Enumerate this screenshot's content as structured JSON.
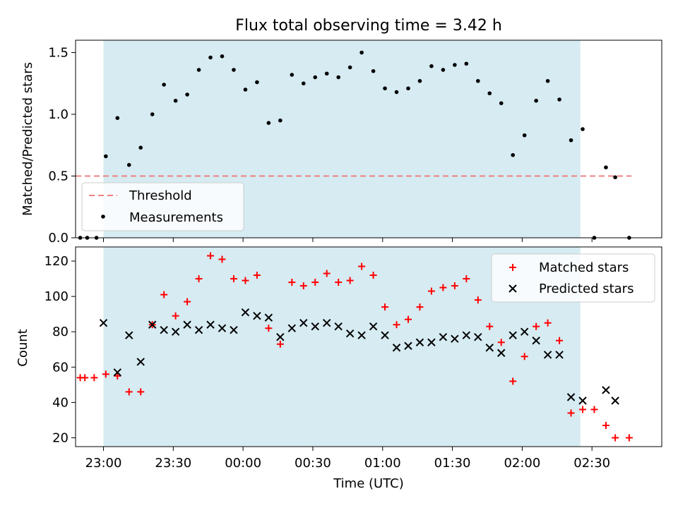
{
  "title": "Flux total observing time = 3.42 h",
  "colors": {
    "span_fill": "#add8e6",
    "threshold": "#f08080",
    "measurements": "#000000",
    "matched": "#ff0000",
    "predicted": "#000000"
  },
  "chart_data": [
    {
      "type": "scatter",
      "ylabel": "Matched/Predicted stars",
      "ylim": [
        0,
        1.6
      ],
      "yticks": [
        0.0,
        0.5,
        1.0,
        1.5
      ],
      "ytick_labels": [
        "0.0",
        "0.5",
        "1.0",
        "1.5"
      ],
      "observing_span": [
        "23:00",
        "02:25"
      ],
      "threshold": {
        "name": "Threshold",
        "value": 0.5,
        "x_range": [
          "22:48",
          "02:47"
        ]
      },
      "legend": {
        "position": "lower-left",
        "entries": [
          "Threshold",
          "Measurements"
        ]
      },
      "series": [
        {
          "name": "Measurements",
          "marker": "dot",
          "x": [
            "22:50",
            "22:53",
            "22:57",
            "23:01",
            "23:06",
            "23:11",
            "23:16",
            "23:21",
            "23:26",
            "23:31",
            "23:36",
            "23:41",
            "23:46",
            "23:51",
            "23:56",
            "00:01",
            "00:06",
            "00:11",
            "00:16",
            "00:21",
            "00:26",
            "00:31",
            "00:36",
            "00:41",
            "00:46",
            "00:51",
            "00:56",
            "01:01",
            "01:06",
            "01:11",
            "01:16",
            "01:21",
            "01:26",
            "01:31",
            "01:36",
            "01:41",
            "01:46",
            "01:51",
            "01:56",
            "02:01",
            "02:06",
            "02:11",
            "02:16",
            "02:21",
            "02:26",
            "02:31",
            "02:36",
            "02:40",
            "02:46"
          ],
          "y": [
            0.0,
            0.0,
            0.0,
            0.66,
            0.97,
            0.59,
            0.73,
            1.0,
            1.24,
            1.11,
            1.16,
            1.36,
            1.46,
            1.47,
            1.36,
            1.2,
            1.26,
            0.93,
            0.95,
            1.32,
            1.25,
            1.3,
            1.33,
            1.3,
            1.38,
            1.5,
            1.35,
            1.21,
            1.18,
            1.21,
            1.27,
            1.39,
            1.36,
            1.4,
            1.41,
            1.27,
            1.17,
            1.09,
            0.67,
            0.83,
            1.11,
            1.27,
            1.12,
            0.79,
            0.88,
            0.0,
            0.57,
            0.49,
            0.0
          ]
        }
      ]
    },
    {
      "type": "scatter",
      "ylabel": "Count",
      "xlabel": "Time (UTC)",
      "ylim": [
        15,
        128
      ],
      "yticks": [
        20,
        40,
        60,
        80,
        100,
        120
      ],
      "ytick_labels": [
        "20",
        "40",
        "60",
        "80",
        "100",
        "120"
      ],
      "xticks": [
        "23:00",
        "23:30",
        "00:00",
        "00:30",
        "01:00",
        "01:30",
        "02:00",
        "02:30"
      ],
      "xlim": [
        "22:48",
        "03:00"
      ],
      "observing_span": [
        "23:00",
        "02:25"
      ],
      "legend": {
        "position": "upper-right",
        "entries": [
          "Matched stars",
          "Predicted stars"
        ]
      },
      "series": [
        {
          "name": "Matched stars",
          "marker": "plus",
          "x": [
            "22:50",
            "22:52",
            "22:56",
            "23:01",
            "23:06",
            "23:11",
            "23:16",
            "23:21",
            "23:26",
            "23:31",
            "23:36",
            "23:41",
            "23:46",
            "23:51",
            "23:56",
            "00:01",
            "00:06",
            "00:11",
            "00:16",
            "00:21",
            "00:26",
            "00:31",
            "00:36",
            "00:41",
            "00:46",
            "00:51",
            "00:56",
            "01:01",
            "01:06",
            "01:11",
            "01:16",
            "01:21",
            "01:26",
            "01:31",
            "01:36",
            "01:41",
            "01:46",
            "01:51",
            "01:56",
            "02:01",
            "02:06",
            "02:11",
            "02:16",
            "02:21",
            "02:26",
            "02:31",
            "02:36",
            "02:40",
            "02:46"
          ],
          "y": [
            54,
            54,
            54,
            56,
            55,
            46,
            46,
            84,
            101,
            89,
            97,
            110,
            123,
            121,
            110,
            109,
            112,
            82,
            73,
            108,
            106,
            108,
            113,
            108,
            109,
            117,
            112,
            94,
            84,
            87,
            94,
            103,
            105,
            106,
            110,
            98,
            83,
            74,
            52,
            66,
            83,
            85,
            75,
            34,
            36,
            36,
            27,
            20,
            20
          ]
        },
        {
          "name": "Predicted stars",
          "marker": "x",
          "x": [
            "23:00",
            "23:06",
            "23:11",
            "23:16",
            "23:21",
            "23:26",
            "23:31",
            "23:36",
            "23:41",
            "23:46",
            "23:51",
            "23:56",
            "00:01",
            "00:06",
            "00:11",
            "00:16",
            "00:21",
            "00:26",
            "00:31",
            "00:36",
            "00:41",
            "00:46",
            "00:51",
            "00:56",
            "01:01",
            "01:06",
            "01:11",
            "01:16",
            "01:21",
            "01:26",
            "01:31",
            "01:36",
            "01:41",
            "01:46",
            "01:51",
            "01:56",
            "02:01",
            "02:06",
            "02:11",
            "02:16",
            "02:21",
            "02:26",
            "02:36",
            "02:40"
          ],
          "y": [
            85,
            57,
            78,
            63,
            84,
            81,
            80,
            84,
            81,
            84,
            82,
            81,
            91,
            89,
            88,
            77,
            82,
            85,
            83,
            85,
            83,
            79,
            78,
            83,
            78,
            71,
            72,
            74,
            74,
            77,
            76,
            78,
            77,
            71,
            68,
            78,
            80,
            75,
            67,
            67,
            43,
            41,
            47,
            41
          ]
        }
      ]
    }
  ]
}
